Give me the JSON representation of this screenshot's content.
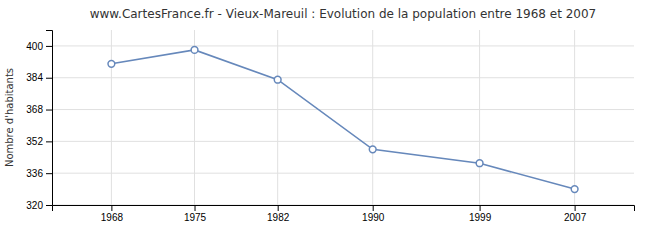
{
  "chart_data": {
    "type": "line",
    "title": "www.CartesFrance.fr - Vieux-Mareuil : Evolution de la population entre 1968 et 2007",
    "ylabel": "Nombre d'habitants",
    "x": [
      1968,
      1975,
      1982,
      1990,
      1999,
      2007
    ],
    "values": [
      391,
      398,
      383,
      348,
      341,
      328
    ],
    "color": "#6688bb",
    "marker": "circle",
    "xlim": [
      1963,
      2012
    ],
    "xticks": [
      1968,
      1975,
      1982,
      1990,
      1999,
      2007
    ],
    "ylim": [
      320,
      408
    ],
    "yticks": [
      320,
      336,
      352,
      368,
      384,
      400
    ],
    "grid": true
  }
}
